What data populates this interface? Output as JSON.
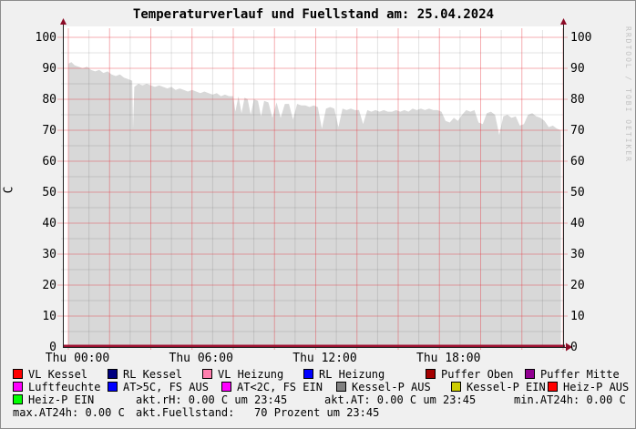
{
  "title": "Temperaturverlauf und Fuellstand am: 25.04.2024",
  "watermark": "RRDTOOL / TOBI OETIKER",
  "chart_data": {
    "type": "area",
    "title": "Temperaturverlauf und Fuellstand am: 25.04.2024",
    "xlabel": "",
    "ylabel": "C",
    "ylim": [
      0,
      100
    ],
    "y_major_step": 10,
    "y_minor_step": 5,
    "x_range_hours": [
      0,
      24
    ],
    "x_major_step_hours": 2,
    "x_minor_step_hours": 1,
    "grid": "on",
    "legend_position": "bottom",
    "yticks": [
      0,
      10,
      20,
      30,
      40,
      50,
      60,
      70,
      80,
      90,
      100
    ],
    "xticks": [
      {
        "hour": 0,
        "label": "Thu 00:00"
      },
      {
        "hour": 6,
        "label": "Thu 06:00"
      },
      {
        "hour": 12,
        "label": "Thu 12:00"
      },
      {
        "hour": 18,
        "label": "Thu 18:00"
      }
    ],
    "series": [
      {
        "name": "Fuellstand (Prozent)",
        "type": "area",
        "color": "#d8d8d8",
        "points": [
          [
            0,
            91.5
          ],
          [
            0.15,
            92
          ],
          [
            0.3,
            91
          ],
          [
            0.5,
            90.5
          ],
          [
            0.7,
            90
          ],
          [
            0.9,
            90.5
          ],
          [
            1.1,
            89.5
          ],
          [
            1.3,
            89
          ],
          [
            1.5,
            89.5
          ],
          [
            1.7,
            88.5
          ],
          [
            1.9,
            89
          ],
          [
            2.1,
            88
          ],
          [
            2.3,
            87.5
          ],
          [
            2.5,
            88
          ],
          [
            2.7,
            87
          ],
          [
            2.9,
            86.5
          ],
          [
            3.1,
            86
          ],
          [
            3.14,
            70.5
          ],
          [
            3.2,
            84
          ],
          [
            3.4,
            85
          ],
          [
            3.6,
            84.5
          ],
          [
            3.8,
            85
          ],
          [
            4,
            84.5
          ],
          [
            4.2,
            84
          ],
          [
            4.4,
            84.5
          ],
          [
            4.6,
            84
          ],
          [
            4.8,
            83.5
          ],
          [
            5,
            84
          ],
          [
            5.2,
            83
          ],
          [
            5.4,
            83.5
          ],
          [
            5.6,
            83
          ],
          [
            5.8,
            82.5
          ],
          [
            6,
            83
          ],
          [
            6.2,
            82.5
          ],
          [
            6.4,
            82
          ],
          [
            6.6,
            82.5
          ],
          [
            6.8,
            82
          ],
          [
            7,
            81.5
          ],
          [
            7.2,
            82
          ],
          [
            7.4,
            81
          ],
          [
            7.6,
            81.5
          ],
          [
            7.8,
            81
          ],
          [
            8,
            81
          ],
          [
            8.1,
            76
          ],
          [
            8.25,
            81
          ],
          [
            8.4,
            75.5
          ],
          [
            8.55,
            80.5
          ],
          [
            8.7,
            80
          ],
          [
            8.85,
            75
          ],
          [
            9,
            80
          ],
          [
            9.2,
            79.5
          ],
          [
            9.35,
            74.5
          ],
          [
            9.5,
            79.5
          ],
          [
            9.7,
            79
          ],
          [
            9.9,
            74
          ],
          [
            10.1,
            79
          ],
          [
            10.3,
            74
          ],
          [
            10.5,
            78.5
          ],
          [
            10.7,
            78.5
          ],
          [
            10.9,
            73.5
          ],
          [
            11.1,
            78.5
          ],
          [
            11.3,
            78
          ],
          [
            11.5,
            78
          ],
          [
            11.7,
            77.5
          ],
          [
            11.9,
            78
          ],
          [
            12.1,
            77.5
          ],
          [
            12.3,
            70.5
          ],
          [
            12.5,
            77
          ],
          [
            12.7,
            77.5
          ],
          [
            12.9,
            77
          ],
          [
            13.1,
            71
          ],
          [
            13.3,
            77
          ],
          [
            13.5,
            76.5
          ],
          [
            13.7,
            77
          ],
          [
            13.9,
            76.5
          ],
          [
            14.1,
            76.5
          ],
          [
            14.3,
            72
          ],
          [
            14.5,
            76.5
          ],
          [
            14.7,
            76
          ],
          [
            14.9,
            76.5
          ],
          [
            15.1,
            76
          ],
          [
            15.3,
            76.5
          ],
          [
            15.5,
            76
          ],
          [
            15.7,
            76
          ],
          [
            15.9,
            76.5
          ],
          [
            16.1,
            76
          ],
          [
            16.3,
            76.5
          ],
          [
            16.5,
            76
          ],
          [
            16.7,
            77
          ],
          [
            16.9,
            76.5
          ],
          [
            17.1,
            77
          ],
          [
            17.3,
            76.5
          ],
          [
            17.5,
            77
          ],
          [
            17.7,
            76.5
          ],
          [
            17.9,
            76.5
          ],
          [
            18.1,
            76
          ],
          [
            18.3,
            73
          ],
          [
            18.5,
            72.5
          ],
          [
            18.7,
            74
          ],
          [
            18.9,
            73
          ],
          [
            19.1,
            75
          ],
          [
            19.3,
            76.5
          ],
          [
            19.5,
            76
          ],
          [
            19.7,
            76.5
          ],
          [
            19.9,
            72.5
          ],
          [
            20.1,
            72
          ],
          [
            20.3,
            75.5
          ],
          [
            20.5,
            76
          ],
          [
            20.7,
            75
          ],
          [
            20.9,
            68.5
          ],
          [
            21.1,
            74.5
          ],
          [
            21.3,
            75
          ],
          [
            21.5,
            74
          ],
          [
            21.7,
            74.5
          ],
          [
            21.9,
            71.5
          ],
          [
            22.1,
            72
          ],
          [
            22.3,
            75
          ],
          [
            22.5,
            75.5
          ],
          [
            22.7,
            74.5
          ],
          [
            22.9,
            74
          ],
          [
            23.1,
            73
          ],
          [
            23.3,
            71
          ],
          [
            23.5,
            71.5
          ],
          [
            23.7,
            70.5
          ],
          [
            23.9,
            70
          ]
        ]
      },
      {
        "name": "Temperaturkurven (alle Werte 0.00 C, flach auf Nulllinie)",
        "type": "line",
        "color": "#9e1030",
        "constant_value": 0
      }
    ]
  },
  "colors": {
    "background": "#f0f0f0",
    "plot_background": "#ffffff",
    "area_fill": "#d8d8d8",
    "grid_major": "#e5343e",
    "grid_minor": "#9c9c9c",
    "axis": "#222222",
    "zero_line": "#9e1030",
    "arrow": "#8c0b26"
  },
  "legend": {
    "rows": [
      [
        {
          "swatch": "#ff0000",
          "label": "VL Kessel"
        },
        {
          "swatch": "#000080",
          "label": "RL Kessel"
        },
        {
          "swatch": "#ff7fae",
          "label": "VL Heizung"
        },
        {
          "swatch": "#0000ff",
          "label": "RL Heizung"
        },
        {
          "swatch": "#a40000",
          "label": "Puffer Oben"
        },
        {
          "swatch": "#910091",
          "label": "Puffer Mitte"
        }
      ],
      [
        {
          "swatch": "#ff00ff",
          "label": "Luftfeuchte"
        },
        {
          "swatch": "#0000ff",
          "label": "AT>5C, FS AUS"
        },
        {
          "swatch": "#ff00ff",
          "label": "AT<2C, FS EIN"
        },
        {
          "swatch": "#808080",
          "label": "Kessel-P AUS"
        },
        {
          "swatch": "#cccc00",
          "label": "Kessel-P EIN"
        },
        {
          "swatch": "#ff0000",
          "label": "Heiz-P AUS"
        }
      ],
      [
        {
          "swatch": "#00ff00",
          "label": "Heiz-P EIN"
        },
        {
          "label": "akt.rH: 0.00 C um 23:45"
        },
        {
          "label": "akt.AT: 0.00 C um 23:45"
        },
        {
          "label": "min.AT24h: 0.00 C"
        }
      ],
      [
        {
          "label": "max.AT24h: 0.00 C"
        },
        {
          "label": "akt.Fuellstand:   70 Prozent um 23:45"
        }
      ]
    ]
  }
}
